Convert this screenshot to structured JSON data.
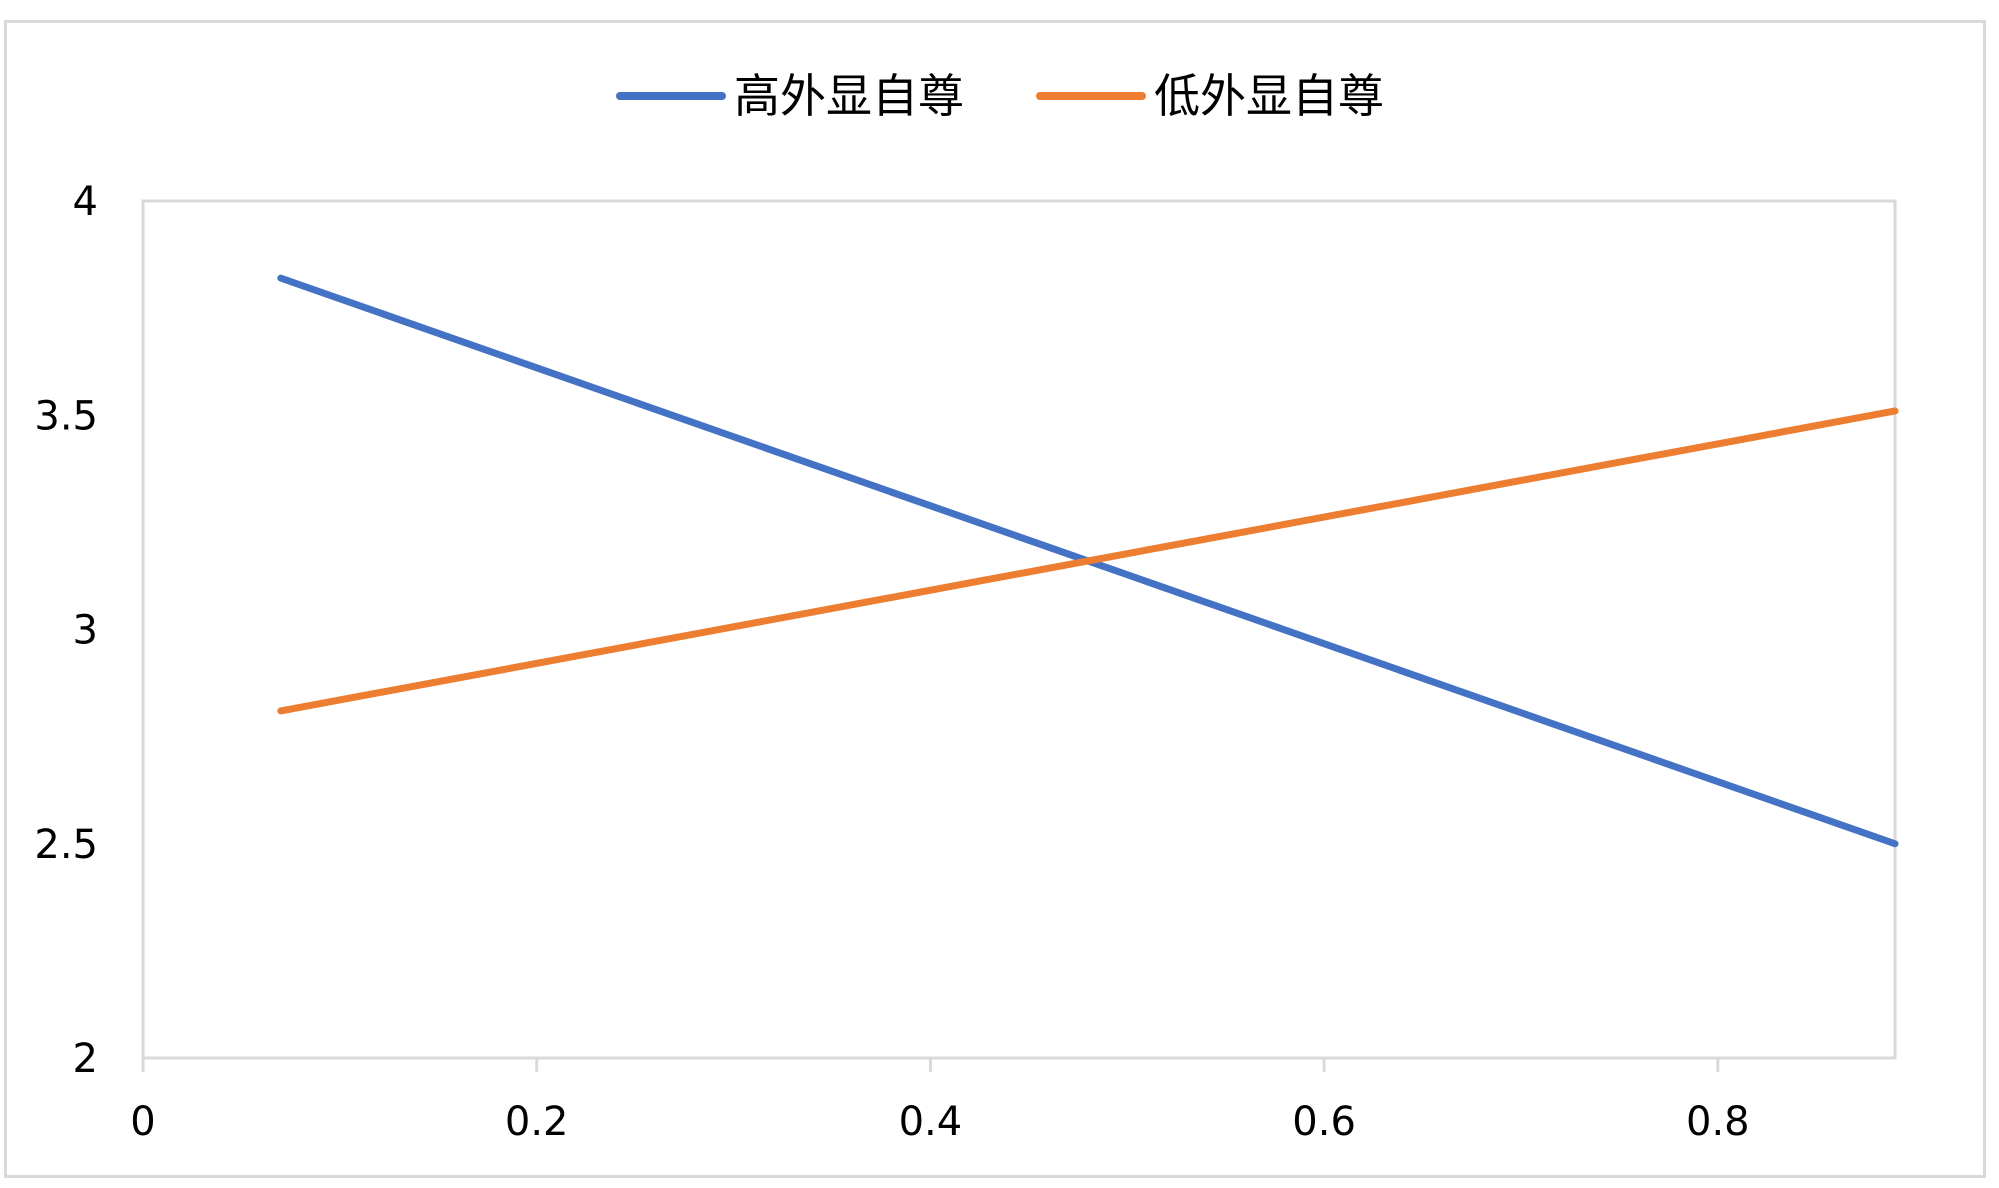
{
  "chart_data": {
    "type": "line",
    "title": "",
    "xlabel": "",
    "ylabel": "",
    "xlim": [
      0,
      0.89
    ],
    "ylim": [
      2,
      4
    ],
    "x_ticks": [
      "0",
      "0.2",
      "0.4",
      "0.6",
      "0.8"
    ],
    "y_ticks": [
      "2",
      "2.5",
      "3",
      "3.5",
      "4"
    ],
    "grid": false,
    "legend_position": "top-center",
    "series": [
      {
        "name": "高外显自尊",
        "color": "#4472c4",
        "x": [
          0.07,
          0.89
        ],
        "values": [
          3.82,
          2.5
        ]
      },
      {
        "name": "低外显自尊",
        "color": "#ed7d31",
        "x": [
          0.07,
          0.89
        ],
        "values": [
          2.81,
          3.51
        ]
      }
    ]
  }
}
